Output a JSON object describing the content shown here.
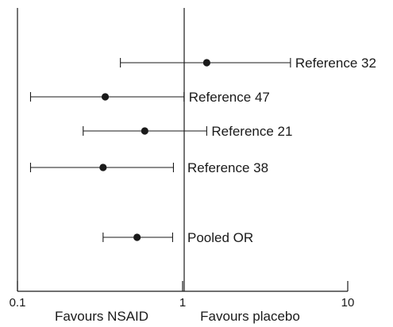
{
  "chart_data": {
    "type": "scatter",
    "title": "",
    "xlabel": "",
    "ylabel": "",
    "x_scale": "log",
    "xlim": [
      0.1,
      10
    ],
    "x_ticks": [
      {
        "value": 0.1,
        "label": "0.1"
      },
      {
        "value": 1,
        "label": "1"
      },
      {
        "value": 10,
        "label": "10"
      }
    ],
    "reference_line_at": 1,
    "grid": false,
    "legend": "none",
    "series": [
      {
        "points": [
          {
            "label": "Reference 32",
            "estimate": 1.4,
            "ci_low": 0.42,
            "ci_high": 4.5
          },
          {
            "label": "Reference 47",
            "estimate": 0.34,
            "ci_low": 0.12,
            "ci_high": 1.02
          },
          {
            "label": "Reference 21",
            "estimate": 0.59,
            "ci_low": 0.25,
            "ci_high": 1.4
          },
          {
            "label": "Reference 38",
            "estimate": 0.33,
            "ci_low": 0.12,
            "ci_high": 0.88
          },
          {
            "label": "Pooled OR",
            "estimate": 0.53,
            "ci_low": 0.33,
            "ci_high": 0.87
          }
        ]
      }
    ],
    "footer_labels": {
      "left": "Favours NSAID",
      "right": "Favours placebo"
    }
  }
}
